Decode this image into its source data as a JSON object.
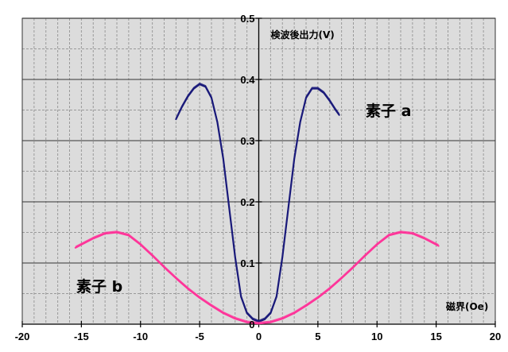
{
  "chart_data": {
    "type": "line",
    "xlabel": "磁界(Oe)",
    "ylabel": "検波後出力(V)",
    "xlim": [
      -20,
      20
    ],
    "ylim": [
      0,
      0.5
    ],
    "grid": true,
    "x_ticks": [
      "-20",
      "-15",
      "-10",
      "-5",
      "0",
      "5",
      "10",
      "15",
      "20"
    ],
    "y_ticks": [
      "0",
      "0.1",
      "0.2",
      "0.3",
      "0.4",
      "0.5"
    ],
    "colors": {
      "a": "#1a1a7a",
      "b": "#ff3399",
      "plot_bg": "#dcdcdc"
    },
    "annotations": [
      "素子 a",
      "素子 b"
    ],
    "series": [
      {
        "name": "素子 a",
        "color": "#1a1a7a",
        "x": [
          -7,
          -6.5,
          -6,
          -5.5,
          -5,
          -4.5,
          -4,
          -3.5,
          -3,
          -2.5,
          -2,
          -1.5,
          -1,
          -0.5,
          0,
          0.5,
          1,
          1.5,
          2,
          2.5,
          3,
          3.5,
          4,
          4.5,
          5,
          5.5,
          6,
          6.5,
          6.8
        ],
        "y": [
          0.335,
          0.355,
          0.372,
          0.385,
          0.392,
          0.388,
          0.37,
          0.33,
          0.27,
          0.19,
          0.11,
          0.045,
          0.018,
          0.008,
          0.004,
          0.008,
          0.018,
          0.045,
          0.11,
          0.19,
          0.27,
          0.33,
          0.37,
          0.385,
          0.385,
          0.378,
          0.365,
          0.35,
          0.342
        ]
      },
      {
        "name": "素子 b",
        "color": "#ff3399",
        "x": [
          -15.5,
          -15,
          -14,
          -13,
          -12,
          -11,
          -10,
          -9,
          -8,
          -7,
          -6,
          -5,
          -4,
          -3,
          -2,
          -1,
          0,
          1,
          2,
          3,
          4,
          5,
          6,
          7,
          8,
          9,
          10,
          11,
          12,
          13,
          14,
          15,
          15.2
        ],
        "y": [
          0.125,
          0.13,
          0.14,
          0.148,
          0.15,
          0.145,
          0.13,
          0.112,
          0.093,
          0.075,
          0.058,
          0.043,
          0.03,
          0.018,
          0.009,
          0.003,
          0.001,
          0.003,
          0.009,
          0.018,
          0.03,
          0.043,
          0.058,
          0.075,
          0.093,
          0.112,
          0.13,
          0.145,
          0.15,
          0.148,
          0.14,
          0.13,
          0.128
        ]
      }
    ]
  }
}
